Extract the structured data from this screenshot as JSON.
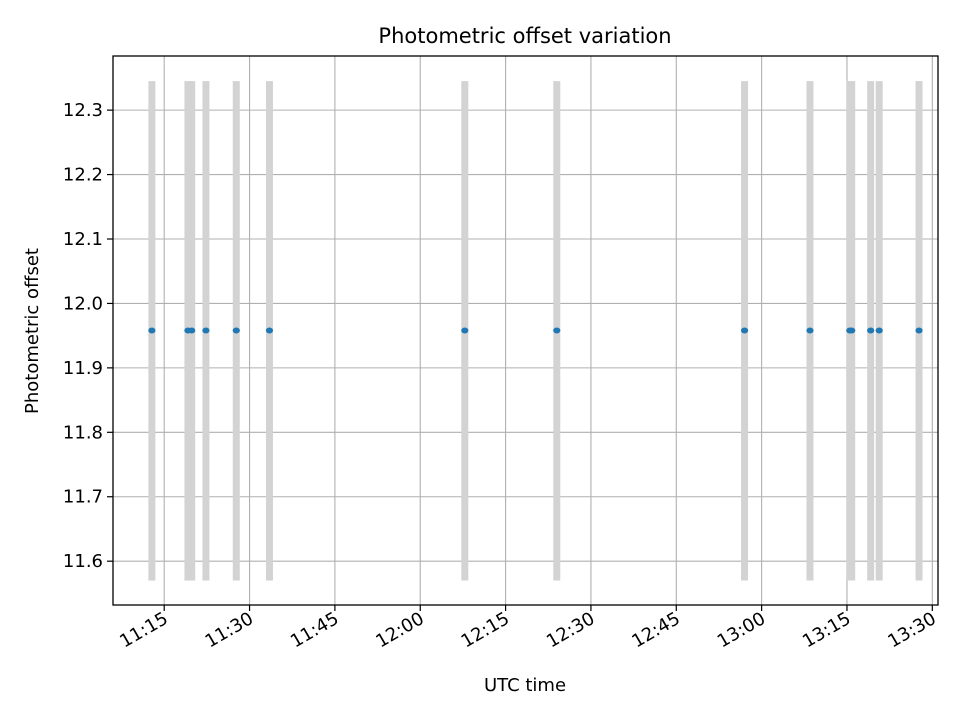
{
  "chart_data": {
    "type": "scatter",
    "title": "Photometric offset variation",
    "xlabel": "UTC time",
    "ylabel": "Photometric offset",
    "xlim": [
      "11:06",
      "13:31"
    ],
    "ylim": [
      11.532,
      12.384
    ],
    "x_ticks": [
      "11:15",
      "11:30",
      "11:45",
      "12:00",
      "12:15",
      "12:30",
      "12:45",
      "13:00",
      "13:15",
      "13:30"
    ],
    "y_ticks": [
      "11.6",
      "11.7",
      "11.8",
      "11.9",
      "12.0",
      "12.1",
      "12.2",
      "12.3"
    ],
    "grid": true,
    "error_bar_range": [
      11.57,
      12.345
    ],
    "series": [
      {
        "points": [
          {
            "x": "11:12:50",
            "y": 11.958
          },
          {
            "x": "11:19:10",
            "y": 11.958
          },
          {
            "x": "11:19:50",
            "y": 11.958
          },
          {
            "x": "11:22:20",
            "y": 11.958
          },
          {
            "x": "11:27:40",
            "y": 11.958
          },
          {
            "x": "11:33:30",
            "y": 11.958
          },
          {
            "x": "12:07:50",
            "y": 11.958
          },
          {
            "x": "12:24:00",
            "y": 11.958
          },
          {
            "x": "12:57:00",
            "y": 11.958
          },
          {
            "x": "13:08:30",
            "y": 11.958
          },
          {
            "x": "13:15:30",
            "y": 11.958
          },
          {
            "x": "13:15:50",
            "y": 11.958
          },
          {
            "x": "13:19:10",
            "y": 11.958
          },
          {
            "x": "13:20:40",
            "y": 11.958
          },
          {
            "x": "13:27:40",
            "y": 11.958
          }
        ]
      }
    ],
    "colors": {
      "points": "#1f77b4",
      "error_bars": "#d3d3d3",
      "grid": "#b0b0b0",
      "axes": "#000000"
    }
  }
}
